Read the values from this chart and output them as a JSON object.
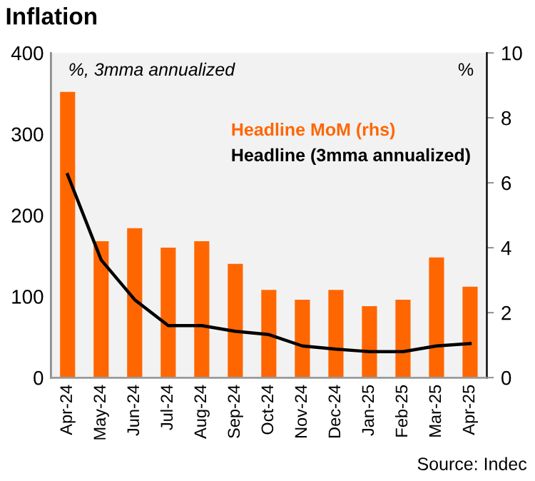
{
  "chart_data": {
    "type": "bar",
    "title": "Inflation",
    "ylabel": "%, 3mma annualized",
    "y2label": "%",
    "categories": [
      "Apr-24",
      "May-24",
      "Jun-24",
      "Jul-24",
      "Aug-24",
      "Sep-24",
      "Oct-24",
      "Nov-24",
      "Dec-24",
      "Jan-25",
      "Feb-25",
      "Mar-25",
      "Apr-25"
    ],
    "series": [
      {
        "name": "Headline MoM (rhs)",
        "axis": "y2",
        "color": "#ff6600",
        "values": [
          8.8,
          4.2,
          4.6,
          4.0,
          4.2,
          3.5,
          2.7,
          2.4,
          2.7,
          2.2,
          2.4,
          3.7,
          2.8
        ]
      },
      {
        "name": "Headline (3mma annualized)",
        "type": "line",
        "color": "#000000",
        "values": [
          250,
          145,
          96,
          64,
          64,
          57,
          53,
          39,
          35,
          32,
          32,
          39,
          42
        ]
      }
    ],
    "ylim": [
      0,
      400
    ],
    "yticks": [
      0,
      100,
      200,
      300,
      400
    ],
    "y2lim": [
      0,
      10
    ],
    "y2ticks": [
      0,
      2,
      4,
      6,
      8,
      10
    ],
    "grid": false,
    "legend": "right",
    "marker": "none",
    "line_style": "solid",
    "annotations": [
      "Source: Indec"
    ]
  }
}
